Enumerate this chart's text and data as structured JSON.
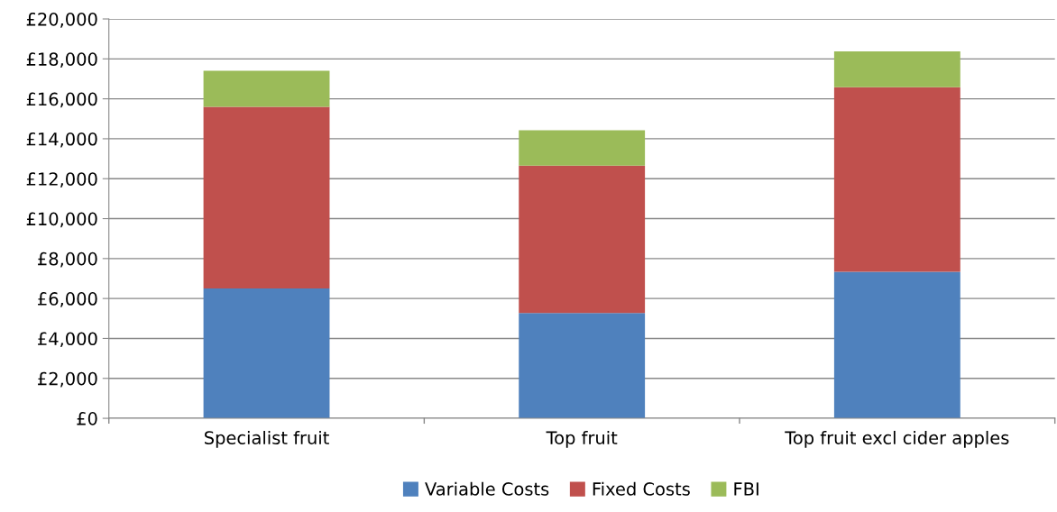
{
  "chart_data": {
    "type": "bar",
    "stacked": true,
    "categories": [
      "Specialist fruit",
      "Top fruit",
      "Top fruit excl cider apples"
    ],
    "series": [
      {
        "name": "Variable Costs",
        "color": "#4f81bd",
        "values": [
          6500,
          5270,
          7340
        ]
      },
      {
        "name": "Fixed Costs",
        "color": "#c0504d",
        "values": [
          9100,
          7380,
          9240
        ]
      },
      {
        "name": "FBI",
        "color": "#9bbb59",
        "values": [
          1800,
          1770,
          1800
        ]
      }
    ],
    "ylim": [
      0,
      20000
    ],
    "yticks": [
      {
        "value": 0,
        "label": "£0"
      },
      {
        "value": 2000,
        "label": "£2,000"
      },
      {
        "value": 4000,
        "label": "£4,000"
      },
      {
        "value": 6000,
        "label": "£6,000"
      },
      {
        "value": 8000,
        "label": "£8,000"
      },
      {
        "value": 10000,
        "label": "£10,000"
      },
      {
        "value": 12000,
        "label": "£12,000"
      },
      {
        "value": 14000,
        "label": "£14,000"
      },
      {
        "value": 16000,
        "label": "£16,000"
      },
      {
        "value": 18000,
        "label": "£18,000"
      },
      {
        "value": 20000,
        "label": "£20,000"
      }
    ],
    "grid": "y",
    "legend": "bottom"
  }
}
